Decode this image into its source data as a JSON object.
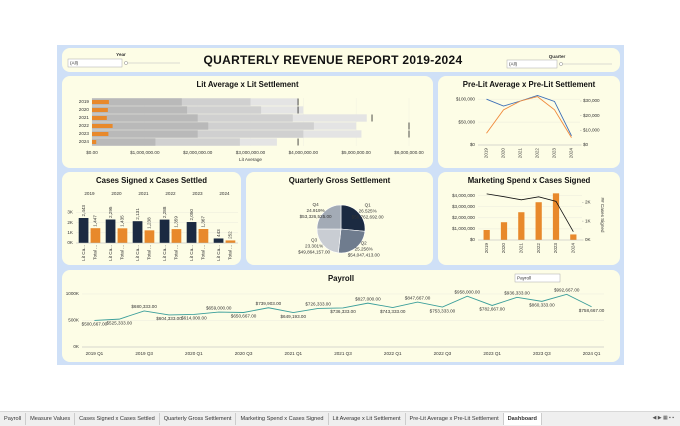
{
  "header": {
    "title": "QUARTERLY REVENUE REPORT 2019-2024",
    "filters": [
      {
        "label": "Year",
        "value": "(All)"
      },
      {
        "label": "Quarter",
        "value": "(All)"
      }
    ]
  },
  "chart_data": [
    {
      "type": "bullet",
      "title": "Lit Average x Lit Settlement",
      "categories": [
        "2019",
        "2020",
        "2021",
        "2022",
        "2023",
        "2024"
      ],
      "values": [
        320000,
        300000,
        280000,
        390000,
        310000,
        80000
      ],
      "color": "#e8892b",
      "bands": [
        [
          1700000,
          3000000,
          3900000
        ],
        [
          1800000,
          3200000,
          4000000
        ],
        [
          2000000,
          3800000,
          5200000
        ],
        [
          2200000,
          4200000,
          5000000
        ],
        [
          2000000,
          4000000,
          5100000
        ],
        [
          1200000,
          2800000,
          3500000
        ]
      ],
      "band_colors": [
        "#b9b9b9",
        "#d0d0d0",
        "#e4e4e4"
      ],
      "reference": [
        3900000,
        3900000,
        5300000,
        6000000,
        6000000,
        3900000
      ],
      "reference_color": "#222222",
      "xlim": [
        0,
        6000000
      ],
      "xticks": [
        {
          "value": 0,
          "label": "$0.00"
        },
        {
          "value": 1000000,
          "label": "$1,000,000.00"
        },
        {
          "value": 2000000,
          "label": "$2,000,000.00"
        },
        {
          "value": 3000000,
          "label": "$3,000,000.00"
        },
        {
          "value": 4000000,
          "label": "$4,000,000.00"
        },
        {
          "value": 5000000,
          "label": "$5,000,000.00"
        },
        {
          "value": 6000000,
          "label": "$6,000,000.00"
        }
      ],
      "xlabel": "Lit Average"
    },
    {
      "type": "line",
      "title": "Pre-Lit Average x Pre-Lit Settlement",
      "categories": [
        "2019",
        "2020",
        "2021",
        "2022",
        "2023",
        "2024"
      ],
      "series": [
        {
          "color": "#3d6fb6",
          "values": [
            100000,
            85000,
            96000,
            108000,
            95000,
            20000
          ]
        },
        {
          "color": "#f08a3c",
          "values": [
            8000,
            24000,
            30000,
            33000,
            24000,
            5000
          ],
          "axis": "y2"
        }
      ],
      "ylim": [
        0,
        120000
      ],
      "yticks": [
        {
          "value": 0,
          "label": "$0"
        },
        {
          "value": 50000,
          "label": "$50,000"
        },
        {
          "value": 100000,
          "label": "$100,000"
        }
      ],
      "y2lim": [
        0,
        37500
      ],
      "y2ticks": [
        {
          "value": 0,
          "label": "$0"
        },
        {
          "value": 10000,
          "label": "$10,000"
        },
        {
          "value": 20000,
          "label": "$20,000"
        },
        {
          "value": 30000,
          "label": "$30,000"
        }
      ]
    },
    {
      "type": "grouped_bar",
      "title": "Cases Signed x Cases Settled",
      "categories": [
        "2019",
        "2020",
        "2021",
        "2022",
        "2023",
        "2024"
      ],
      "bar_labels": [
        "Lit Ca...",
        "Total ..."
      ],
      "series": [
        {
          "color": "#1b2a41",
          "values": [
            2443,
            2295,
            2131,
            2288,
            2050,
            443
          ],
          "value_labels": [
            "2,443",
            "2,295",
            "2,131",
            "2,288",
            "2,050",
            "443"
          ]
        },
        {
          "color": "#e8892b",
          "values": [
            1447,
            1435,
            1238,
            1359,
            1367,
            252
          ],
          "value_labels": [
            "1,447",
            "1,435",
            "1,238",
            "1,359",
            "1,367",
            "252"
          ]
        }
      ],
      "ylim": [
        0,
        4300
      ],
      "yticks": [
        {
          "value": 0,
          "label": "0K"
        },
        {
          "value": 1000,
          "label": "1K"
        },
        {
          "value": 2000,
          "label": "2K"
        },
        {
          "value": 3000,
          "label": "3K"
        }
      ]
    },
    {
      "type": "pie",
      "title": "Quarterly Gross Settlement",
      "categories": [
        "Q1",
        "Q2",
        "Q3",
        "Q4"
      ],
      "values": [
        26.525,
        25.256,
        23.301,
        24.919
      ],
      "value_labels": [
        "26.525%",
        "25.256%",
        "23.301%",
        "24.919%"
      ],
      "amount_labels": [
        "$56,762,692.00",
        "$54,047,413.00",
        "$49,864,157.00",
        "$53,326,525.00"
      ],
      "colors": [
        "#1b2a41",
        "#6f7c8e",
        "#c9cdd3",
        "#a3abb6"
      ]
    },
    {
      "type": "combo",
      "title": "Marketing Spend x Cases Signed",
      "categories": [
        "2019",
        "2020",
        "2021",
        "2022",
        "2023",
        "2024"
      ],
      "series": [
        {
          "color": "#e8892b",
          "values": [
            900000,
            1600000,
            2500000,
            3400000,
            4200000,
            500000
          ]
        },
        {
          "color": "#111111",
          "values": [
            2443,
            2295,
            2131,
            2288,
            2050,
            443
          ],
          "axis": "y2"
        }
      ],
      "ylim": [
        0,
        4500000
      ],
      "yticks": [
        {
          "value": 0,
          "label": "$0"
        },
        {
          "value": 1000000,
          "label": "$1,000,000"
        },
        {
          "value": 2000000,
          "label": "$2,000,000"
        },
        {
          "value": 3000000,
          "label": "$3,000,000"
        },
        {
          "value": 4000000,
          "label": "$4,000,000"
        }
      ],
      "y2lim": [
        0,
        2650
      ],
      "y2ticks": [
        {
          "value": 0,
          "label": "0K"
        },
        {
          "value": 1000,
          "label": "1K"
        },
        {
          "value": 2000,
          "label": "2K"
        }
      ],
      "y2label": "## Cases Signed"
    },
    {
      "type": "line",
      "title": "Payroll",
      "filter": "Payroll",
      "categories": [
        "2019 Q1",
        null,
        "2019 Q3",
        null,
        "2020 Q1",
        null,
        "2020 Q3",
        null,
        "2021 Q1",
        null,
        "2021 Q3",
        null,
        "2022 Q1",
        null,
        "2022 Q3",
        null,
        "2023 Q1",
        null,
        "2023 Q3",
        null,
        "2024 Q1"
      ],
      "series": [
        {
          "color": "#3a9e9a",
          "values": [
            500667,
            525333,
            680333,
            604333,
            614000,
            659000,
            650667,
            739903,
            649193,
            726333,
            736333,
            827000,
            743333,
            847667,
            753333,
            958000,
            782667,
            936333,
            860333,
            992667,
            758667
          ],
          "value_labels": [
            "$500,667.00",
            "$525,333.00",
            "$680,333.00",
            "$604,333.00",
            "$614,000.00",
            "$659,000.00",
            "$650,667.00",
            "$739,903.00",
            "$649,193.00",
            "$726,333.00",
            "$736,333.00",
            "$827,000.00",
            "$743,333.00",
            "$847,667.00",
            "$753,333.00",
            "$958,000.00",
            "$782,667.00",
            "$936,333.00",
            "$860,333.00",
            "$992,667.00",
            "$758,667.00"
          ]
        }
      ],
      "ylim": [
        0,
        1150000
      ],
      "yticks": [
        {
          "value": 0,
          "label": "0K"
        },
        {
          "value": 500000,
          "label": "500K"
        },
        {
          "value": 1000000,
          "label": "1000K"
        }
      ]
    }
  ],
  "tabs": [
    "Payroll",
    "Measure Values",
    "Cases Signed x Cases Settled",
    "Quarterly Gross Settlement",
    "Marketing Spend x Cases Signed",
    "Lit Average x Lit Settlement",
    "Pre-Lit Average x Pre-Lit Settlement",
    "Dashboard"
  ]
}
